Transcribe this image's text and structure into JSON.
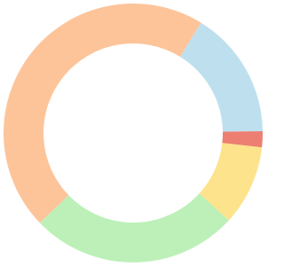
{
  "chart_data": {
    "type": "donut",
    "values": [
      16,
      2,
      10,
      26,
      46
    ],
    "colors": [
      "#bee0ee",
      "#ec7f72",
      "#fde38b",
      "#bdf0b8",
      "#fdc49a"
    ]
  }
}
